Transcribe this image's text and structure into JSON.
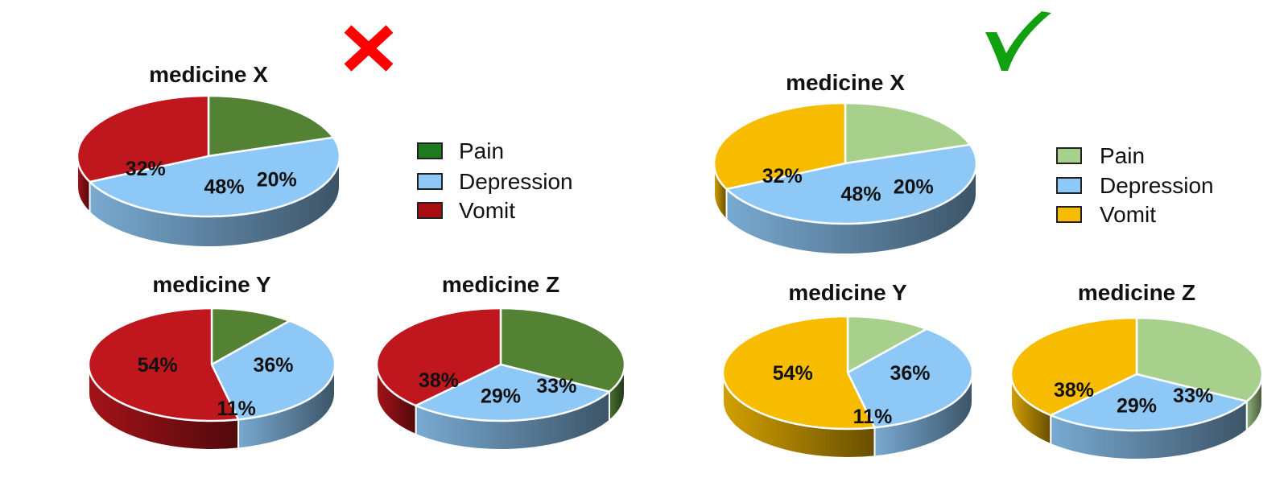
{
  "panels": [
    {
      "id": "bad",
      "verdict_mark": "✗",
      "verdict": "incorrect",
      "legend": [
        {
          "label": "Pain",
          "color": "#1f7a1f"
        },
        {
          "label": "Depression",
          "color": "#8ec8f6"
        },
        {
          "label": "Vomit",
          "color": "#a80d12"
        }
      ]
    },
    {
      "id": "good",
      "verdict_mark": "✓",
      "verdict": "correct",
      "legend": [
        {
          "label": "Pain",
          "color": "#a8d08d"
        },
        {
          "label": "Depression",
          "color": "#8ec8f6"
        },
        {
          "label": "Vomit",
          "color": "#f7bc00"
        }
      ]
    }
  ],
  "chart_data": [
    {
      "type": "pie",
      "panel": "bad",
      "title": "medicine X",
      "slices": [
        {
          "label": "Pain",
          "value": 20,
          "text": "20%"
        },
        {
          "label": "Depression",
          "value": 48,
          "text": "48%"
        },
        {
          "label": "Vomit",
          "value": 32,
          "text": "32%"
        }
      ],
      "colors": {
        "Pain": "#548235",
        "Depression": "#8ec8f6",
        "Vomit": "#c0161d"
      }
    },
    {
      "type": "pie",
      "panel": "bad",
      "title": "medicine Y",
      "slices": [
        {
          "label": "Pain",
          "value": 11,
          "text": "11%"
        },
        {
          "label": "Depression",
          "value": 36,
          "text": "36%"
        },
        {
          "label": "Vomit",
          "value": 54,
          "text": "54%"
        }
      ],
      "colors": {
        "Pain": "#548235",
        "Depression": "#8ec8f6",
        "Vomit": "#c0161d"
      }
    },
    {
      "type": "pie",
      "panel": "bad",
      "title": "medicine Z",
      "slices": [
        {
          "label": "Pain",
          "value": 33,
          "text": "33%"
        },
        {
          "label": "Depression",
          "value": 29,
          "text": "29%"
        },
        {
          "label": "Vomit",
          "value": 38,
          "text": "38%"
        }
      ],
      "colors": {
        "Pain": "#548235",
        "Depression": "#8ec8f6",
        "Vomit": "#c0161d"
      }
    },
    {
      "type": "pie",
      "panel": "good",
      "title": "medicine X",
      "slices": [
        {
          "label": "Pain",
          "value": 20,
          "text": "20%"
        },
        {
          "label": "Depression",
          "value": 48,
          "text": "48%"
        },
        {
          "label": "Vomit",
          "value": 32,
          "text": "32%"
        }
      ],
      "colors": {
        "Pain": "#a8d08d",
        "Depression": "#8ec8f6",
        "Vomit": "#f7bc00"
      }
    },
    {
      "type": "pie",
      "panel": "good",
      "title": "medicine Y",
      "slices": [
        {
          "label": "Pain",
          "value": 11,
          "text": "11%"
        },
        {
          "label": "Depression",
          "value": 36,
          "text": "36%"
        },
        {
          "label": "Vomit",
          "value": 54,
          "text": "54%"
        }
      ],
      "colors": {
        "Pain": "#a8d08d",
        "Depression": "#8ec8f6",
        "Vomit": "#f7bc00"
      }
    },
    {
      "type": "pie",
      "panel": "good",
      "title": "medicine Z",
      "slices": [
        {
          "label": "Pain",
          "value": 33,
          "text": "33%"
        },
        {
          "label": "Depression",
          "value": 29,
          "text": "29%"
        },
        {
          "label": "Vomit",
          "value": 38,
          "text": "38%"
        }
      ],
      "colors": {
        "Pain": "#a8d08d",
        "Depression": "#8ec8f6",
        "Vomit": "#f7bc00"
      }
    }
  ]
}
